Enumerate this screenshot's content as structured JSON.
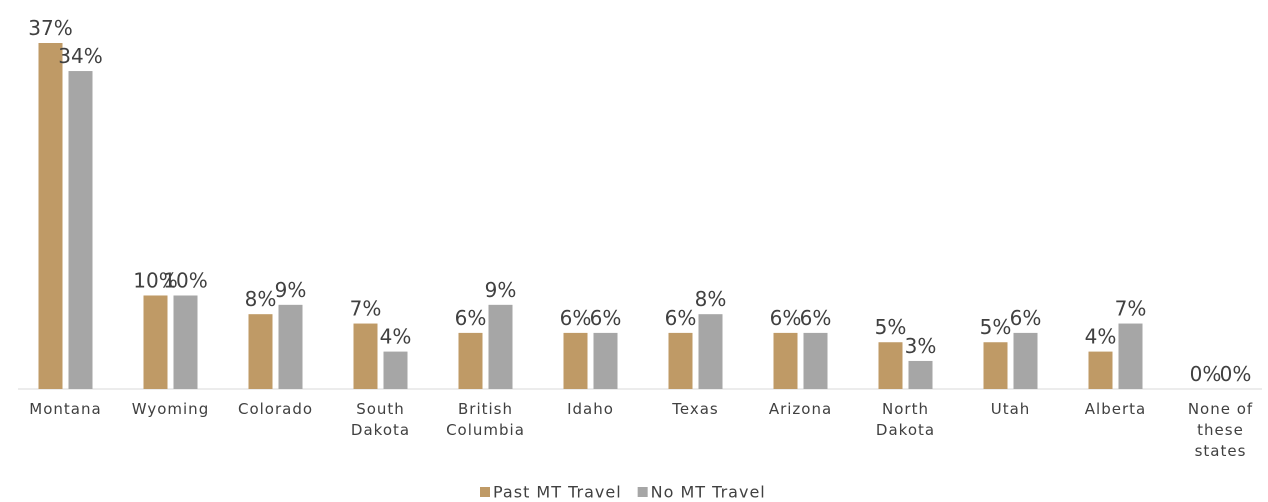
{
  "chart_data": {
    "type": "bar",
    "categories": [
      "Montana",
      "Wyoming",
      "Colorado",
      "South Dakota",
      "British Columbia",
      "Idaho",
      "Texas",
      "Arizona",
      "North Dakota",
      "Utah",
      "Alberta",
      "None of these states"
    ],
    "series": [
      {
        "name": "Past MT Travel",
        "color": "#bf9a66",
        "values": [
          37,
          10,
          8,
          7,
          6,
          6,
          6,
          6,
          5,
          5,
          4,
          0
        ]
      },
      {
        "name": "No MT Travel",
        "color": "#a6a6a6",
        "values": [
          34,
          10,
          9,
          4,
          9,
          6,
          8,
          6,
          3,
          6,
          7,
          0
        ]
      }
    ],
    "value_labels": [
      [
        "37%",
        "10%",
        "8%",
        "7%",
        "6%",
        "6%",
        "6%",
        "6%",
        "5%",
        "5%",
        "4%",
        "0%"
      ],
      [
        "34%",
        "10%",
        "9%",
        "4%",
        "9%",
        "6%",
        "8%",
        "6%",
        "3%",
        "6%",
        "7%",
        "0%"
      ]
    ],
    "legend": "bottom"
  }
}
